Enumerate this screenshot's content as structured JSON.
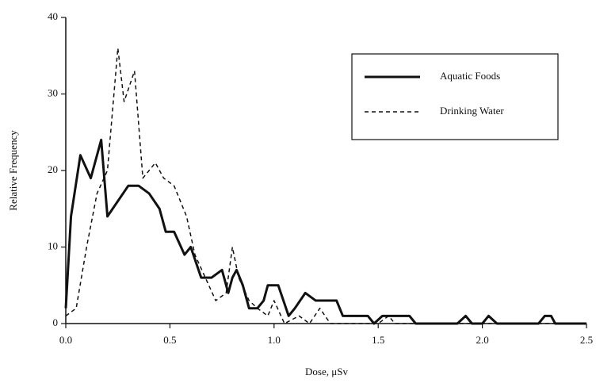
{
  "chart_data": {
    "type": "line",
    "x_label": "Dose, μSv",
    "y_label": "Relative Frequency",
    "xlim": [
      0,
      2.5
    ],
    "ylim": [
      0,
      40
    ],
    "xticks": [
      {
        "value": 0,
        "label": "0.0"
      },
      {
        "value": 0.5,
        "label": "0.5"
      },
      {
        "value": 1,
        "label": "1.0"
      },
      {
        "value": 1.5,
        "label": "1.5"
      },
      {
        "value": 2,
        "label": "2.0"
      },
      {
        "value": 2.5,
        "label": "2.5"
      }
    ],
    "yticks": [
      0,
      10,
      20,
      30,
      40
    ],
    "legend": "upper right",
    "series": [
      {
        "name": "Aquatic Foods",
        "color": "#111111",
        "dash": "solid",
        "width": 3,
        "x": [
          0,
          0.025,
          0.07,
          0.12,
          0.17,
          0.2,
          0.3,
          0.35,
          0.4,
          0.45,
          0.48,
          0.52,
          0.57,
          0.6,
          0.65,
          0.7,
          0.75,
          0.78,
          0.8,
          0.82,
          0.85,
          0.88,
          0.92,
          0.95,
          0.97,
          1.02,
          1.07,
          1.1,
          1.15,
          1.2,
          1.3,
          1.33,
          1.45,
          1.48,
          1.52,
          1.65,
          1.68,
          1.88,
          1.92,
          1.95,
          2.0,
          2.03,
          2.07,
          2.27,
          2.3,
          2.33,
          2.35,
          2.5
        ],
        "values": [
          2,
          14,
          22,
          19,
          24,
          14,
          18,
          18,
          17,
          15,
          12,
          12,
          9,
          10,
          6,
          6,
          7,
          4,
          6,
          7,
          5,
          2,
          2,
          3,
          5,
          5,
          1,
          2,
          4,
          3,
          3,
          1,
          1,
          0,
          1,
          1,
          0,
          0,
          1,
          0,
          0,
          1,
          0,
          0,
          1,
          1,
          0,
          0
        ]
      },
      {
        "name": "Drinking Water",
        "color": "#111111",
        "dash": "dashed",
        "width": 1.5,
        "x": [
          0,
          0.05,
          0.1,
          0.15,
          0.2,
          0.25,
          0.28,
          0.33,
          0.37,
          0.4,
          0.43,
          0.47,
          0.52,
          0.58,
          0.62,
          0.67,
          0.72,
          0.77,
          0.8,
          0.83,
          0.88,
          0.92,
          0.97,
          1.0,
          1.05,
          1.12,
          1.17,
          1.22,
          1.27,
          1.5,
          1.55,
          1.58,
          2.5
        ],
        "values": [
          1,
          2,
          10,
          17,
          20,
          36,
          29,
          33,
          19,
          20,
          21,
          19,
          18,
          14,
          9,
          6,
          3,
          4,
          10,
          6,
          3,
          2,
          1,
          3,
          0,
          1,
          0,
          2,
          0,
          0,
          1,
          0,
          0
        ]
      }
    ]
  }
}
